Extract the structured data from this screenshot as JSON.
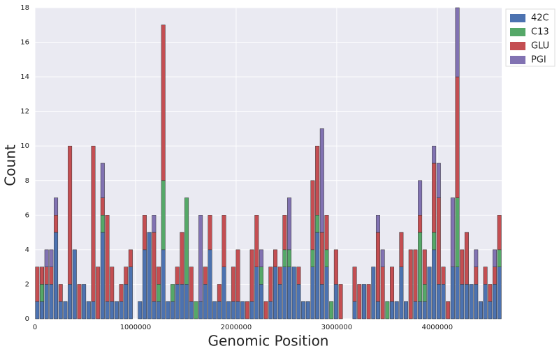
{
  "chart_data": {
    "type": "histogram",
    "stacked": true,
    "xlabel": "Genomic Position",
    "ylabel": "Count",
    "bins": [
      0,
      46400,
      92800,
      139200,
      185600,
      232000,
      278400,
      324800,
      371200,
      417600,
      464000,
      510400,
      556800,
      603200,
      649600,
      696000,
      742400,
      788800,
      835200,
      881600,
      928000,
      974400,
      1020800,
      1067200,
      1113600,
      1160000,
      1206400,
      1252800,
      1299200,
      1345600,
      1392000,
      1438400,
      1484800,
      1531200,
      1577600,
      1624000,
      1670400,
      1716800,
      1763200,
      1809600,
      1856000,
      1902400,
      1948800,
      1995200,
      2041600,
      2088000,
      2134400,
      2180800,
      2227200,
      2273600,
      2320000,
      2366400,
      2412800,
      2459200,
      2505600,
      2552000,
      2598400,
      2644800,
      2691200,
      2737600,
      2784000,
      2830400,
      2876800,
      2923200,
      2969600,
      3016000,
      3062400,
      3108800,
      3155200,
      3201600,
      3248000,
      3294400,
      3340800,
      3387200,
      3433600,
      3480000,
      3526400,
      3572800,
      3619200,
      3665600,
      3712000,
      3758400,
      3804800,
      3851200,
      3897600,
      3944000,
      3990400,
      4036800,
      4083200,
      4129600,
      4176000,
      4222400,
      4268800,
      4315200,
      4361600,
      4408000,
      4454400,
      4500800,
      4547200,
      4593600,
      4640000
    ],
    "series": [
      {
        "name": "42C",
        "color": "#4C72B0",
        "values": [
          1,
          1,
          2,
          2,
          5,
          1,
          1,
          2,
          4,
          0,
          2,
          1,
          1,
          0,
          5,
          1,
          1,
          1,
          1,
          2,
          3,
          0,
          1,
          4,
          5,
          1,
          1,
          4,
          1,
          1,
          2,
          2,
          2,
          1,
          0,
          1,
          2,
          4,
          1,
          1,
          3,
          1,
          1,
          1,
          1,
          0,
          1,
          3,
          2,
          0,
          1,
          3,
          2,
          3,
          3,
          3,
          2,
          1,
          1,
          3,
          5,
          2,
          3,
          0,
          2,
          0,
          0,
          0,
          1,
          0,
          2,
          0,
          3,
          1,
          0,
          0,
          1,
          1,
          3,
          1,
          0,
          1,
          1,
          1,
          3,
          4,
          2,
          2,
          0,
          3,
          3,
          2,
          2,
          2,
          2,
          1,
          2,
          1,
          2,
          3
        ]
      },
      {
        "name": "C13",
        "color": "#55A868",
        "values": [
          0,
          1,
          0,
          0,
          0,
          0,
          0,
          0,
          0,
          0,
          0,
          0,
          0,
          0,
          1,
          0,
          0,
          0,
          0,
          0,
          0,
          0,
          0,
          0,
          0,
          0,
          1,
          4,
          0,
          1,
          0,
          0,
          5,
          0,
          1,
          0,
          0,
          0,
          0,
          0,
          0,
          0,
          0,
          0,
          0,
          0,
          0,
          0,
          1,
          0,
          0,
          0,
          0,
          1,
          1,
          0,
          0,
          0,
          0,
          1,
          1,
          0,
          1,
          1,
          0,
          0,
          0,
          0,
          0,
          0,
          0,
          0,
          0,
          0,
          0,
          1,
          0,
          0,
          0,
          0,
          0,
          0,
          4,
          1,
          0,
          1,
          0,
          0,
          0,
          0,
          4,
          0,
          0,
          0,
          0,
          0,
          0,
          0,
          0,
          1
        ]
      },
      {
        "name": "GLU",
        "color": "#C44E52",
        "values": [
          2,
          1,
          1,
          1,
          1,
          1,
          0,
          8,
          0,
          2,
          0,
          0,
          9,
          3,
          1,
          5,
          2,
          0,
          1,
          1,
          1,
          0,
          0,
          2,
          0,
          4,
          1,
          9,
          0,
          0,
          1,
          3,
          0,
          2,
          0,
          0,
          1,
          2,
          0,
          1,
          3,
          0,
          2,
          3,
          0,
          1,
          3,
          3,
          0,
          1,
          2,
          1,
          1,
          2,
          0,
          0,
          1,
          0,
          0,
          4,
          4,
          3,
          2,
          0,
          2,
          2,
          0,
          0,
          2,
          2,
          0,
          2,
          0,
          4,
          3,
          0,
          2,
          0,
          2,
          0,
          4,
          3,
          1,
          2,
          0,
          4,
          5,
          1,
          1,
          0,
          7,
          2,
          3,
          0,
          1,
          0,
          1,
          1,
          1,
          2
        ]
      },
      {
        "name": "PGI",
        "color": "#8172B2",
        "values": [
          0,
          0,
          1,
          1,
          1,
          0,
          0,
          0,
          0,
          0,
          0,
          0,
          0,
          0,
          2,
          0,
          0,
          0,
          0,
          0,
          0,
          0,
          0,
          0,
          0,
          1,
          0,
          0,
          0,
          0,
          0,
          0,
          0,
          0,
          0,
          5,
          0,
          0,
          0,
          0,
          0,
          0,
          0,
          0,
          0,
          0,
          0,
          0,
          1,
          0,
          0,
          0,
          0,
          0,
          3,
          0,
          0,
          0,
          0,
          0,
          0,
          6,
          0,
          0,
          0,
          0,
          0,
          0,
          0,
          0,
          0,
          0,
          0,
          1,
          1,
          0,
          0,
          0,
          0,
          0,
          0,
          0,
          2,
          0,
          0,
          1,
          2,
          0,
          0,
          4,
          4,
          0,
          0,
          0,
          1,
          0,
          0,
          0,
          1,
          0
        ]
      }
    ],
    "xlim": [
      0,
      4640000
    ],
    "xticks": [
      0,
      1000000,
      2000000,
      3000000,
      4000000
    ],
    "ylim": [
      0,
      18
    ],
    "yticks": [
      0,
      2,
      4,
      6,
      8,
      10,
      12,
      14,
      16,
      18
    ],
    "grid": true,
    "legend": "upper right outside"
  }
}
